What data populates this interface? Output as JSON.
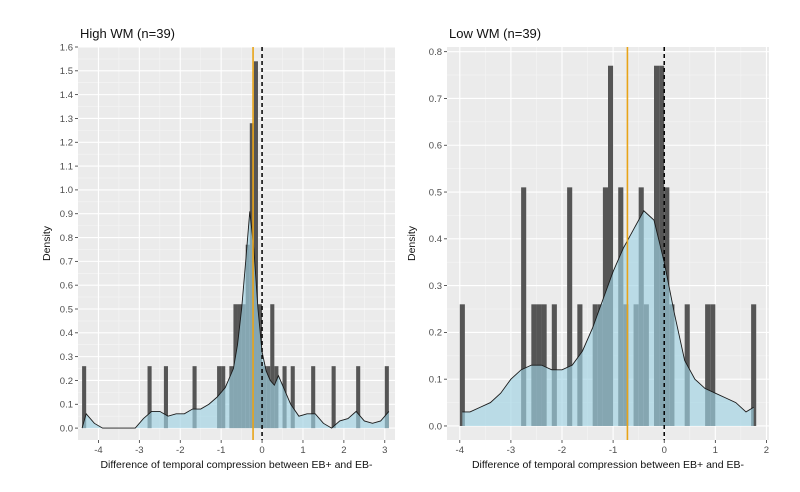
{
  "colors": {
    "panel_bg": "#ebebeb",
    "grid_major": "#ffffff",
    "grid_minor": "#f5f5f5",
    "bar": "#555555",
    "density_fill": "#9fd3e3",
    "density_line": "#1a1a1a",
    "mean_line": "#e8a317",
    "zero_line": "#000000"
  },
  "chart_data": [
    {
      "type": "histogram+density",
      "title": "High WM (n=39)",
      "xlabel": "Difference of temporal compression between EB+ and EB-",
      "ylabel": "Density",
      "xlim": [
        -4.5,
        3.25
      ],
      "ylim": [
        -0.05,
        1.6
      ],
      "xticks": [
        -4,
        -3,
        -2,
        -1,
        0,
        1,
        2,
        3
      ],
      "yticks": [
        0.0,
        0.1,
        0.2,
        0.3,
        0.4,
        0.5,
        0.6,
        0.7,
        0.8,
        0.9,
        1.0,
        1.1,
        1.2,
        1.3,
        1.4,
        1.5,
        1.6
      ],
      "tick_labels_y": [
        "0.0",
        "0.1",
        "0.2",
        "0.3",
        "0.4",
        "0.5",
        "0.6",
        "0.7",
        "0.8",
        "0.9",
        "1.0",
        "1.1",
        "1.2",
        "1.3",
        "1.4",
        "1.5",
        "1.6"
      ],
      "tick_labels_x": [
        "-4",
        "-3",
        "-2",
        "-1",
        "0",
        "1",
        "2",
        "3"
      ],
      "binwidth": 0.1,
      "bins": [
        {
          "x": -4.35,
          "y": 0.26
        },
        {
          "x": -2.75,
          "y": 0.26
        },
        {
          "x": -2.35,
          "y": 0.26
        },
        {
          "x": -1.65,
          "y": 0.26
        },
        {
          "x": -1.05,
          "y": 0.26
        },
        {
          "x": -0.95,
          "y": 0.26
        },
        {
          "x": -0.75,
          "y": 0.26
        },
        {
          "x": -0.65,
          "y": 0.52
        },
        {
          "x": -0.55,
          "y": 0.52
        },
        {
          "x": -0.45,
          "y": 0.52
        },
        {
          "x": -0.35,
          "y": 0.77
        },
        {
          "x": -0.25,
          "y": 1.28
        },
        {
          "x": -0.15,
          "y": 1.54
        },
        {
          "x": -0.05,
          "y": 0.52
        },
        {
          "x": 0.05,
          "y": 0.26
        },
        {
          "x": 0.15,
          "y": 0.26
        },
        {
          "x": 0.25,
          "y": 0.52
        },
        {
          "x": 0.35,
          "y": 0.26
        },
        {
          "x": 0.55,
          "y": 0.26
        },
        {
          "x": 0.75,
          "y": 0.26
        },
        {
          "x": 1.25,
          "y": 0.26
        },
        {
          "x": 1.75,
          "y": 0.26
        },
        {
          "x": 2.35,
          "y": 0.26
        },
        {
          "x": 3.05,
          "y": 0.26
        }
      ],
      "density": {
        "x": [
          -4.4,
          -4.3,
          -4.1,
          -3.9,
          -3.5,
          -3.1,
          -2.9,
          -2.7,
          -2.5,
          -2.3,
          -2.1,
          -1.9,
          -1.7,
          -1.5,
          -1.3,
          -1.1,
          -0.9,
          -0.7,
          -0.6,
          -0.5,
          -0.4,
          -0.3,
          -0.2,
          -0.1,
          0.0,
          0.1,
          0.2,
          0.3,
          0.4,
          0.5,
          0.7,
          0.9,
          1.1,
          1.3,
          1.5,
          1.7,
          1.9,
          2.1,
          2.3,
          2.5,
          2.7,
          2.9,
          3.1
        ],
        "y": [
          0.0,
          0.06,
          0.02,
          0.0,
          0.0,
          0.0,
          0.04,
          0.07,
          0.07,
          0.05,
          0.06,
          0.06,
          0.08,
          0.08,
          0.1,
          0.13,
          0.17,
          0.25,
          0.35,
          0.5,
          0.7,
          0.91,
          0.75,
          0.5,
          0.32,
          0.24,
          0.2,
          0.18,
          0.22,
          0.18,
          0.1,
          0.05,
          0.06,
          0.06,
          0.02,
          0.0,
          0.03,
          0.04,
          0.07,
          0.03,
          0.02,
          0.03,
          0.07
        ]
      },
      "mean_line_x": -0.22,
      "zero_line_x": 0
    },
    {
      "type": "histogram+density",
      "title": "Low WM (n=39)",
      "xlabel": "Difference of temporal compression between EB+ and EB-",
      "ylabel": "Density",
      "xlim": [
        -4.25,
        2.05
      ],
      "ylim": [
        -0.03,
        0.81
      ],
      "xticks": [
        -4,
        -3,
        -2,
        -1,
        0,
        1,
        2
      ],
      "yticks": [
        0.0,
        0.1,
        0.2,
        0.3,
        0.4,
        0.5,
        0.6,
        0.7,
        0.8
      ],
      "tick_labels_y": [
        "0.0",
        "0.1",
        "0.2",
        "0.3",
        "0.4",
        "0.5",
        "0.6",
        "0.7",
        "0.8"
      ],
      "tick_labels_x": [
        "-4",
        "-3",
        "-2",
        "-1",
        "0",
        "1",
        "2"
      ],
      "binwidth": 0.1,
      "bins": [
        {
          "x": -3.95,
          "y": 0.26
        },
        {
          "x": -2.75,
          "y": 0.51
        },
        {
          "x": -2.55,
          "y": 0.26
        },
        {
          "x": -2.45,
          "y": 0.26
        },
        {
          "x": -2.35,
          "y": 0.26
        },
        {
          "x": -2.15,
          "y": 0.26
        },
        {
          "x": -1.85,
          "y": 0.51
        },
        {
          "x": -1.65,
          "y": 0.26
        },
        {
          "x": -1.35,
          "y": 0.26
        },
        {
          "x": -1.25,
          "y": 0.26
        },
        {
          "x": -1.15,
          "y": 0.51
        },
        {
          "x": -1.05,
          "y": 0.77
        },
        {
          "x": -0.85,
          "y": 0.51
        },
        {
          "x": -0.75,
          "y": 0.26
        },
        {
          "x": -0.55,
          "y": 0.26
        },
        {
          "x": -0.45,
          "y": 0.51
        },
        {
          "x": -0.35,
          "y": 0.26
        },
        {
          "x": -0.15,
          "y": 0.77
        },
        {
          "x": -0.05,
          "y": 0.77
        },
        {
          "x": 0.05,
          "y": 0.51
        },
        {
          "x": 0.15,
          "y": 0.26
        },
        {
          "x": 0.45,
          "y": 0.26
        },
        {
          "x": 0.85,
          "y": 0.26
        },
        {
          "x": 0.95,
          "y": 0.26
        },
        {
          "x": 1.75,
          "y": 0.26
        }
      ],
      "density": {
        "x": [
          -3.95,
          -3.8,
          -3.6,
          -3.4,
          -3.2,
          -3.0,
          -2.8,
          -2.6,
          -2.4,
          -2.2,
          -2.0,
          -1.8,
          -1.6,
          -1.4,
          -1.2,
          -1.0,
          -0.8,
          -0.6,
          -0.4,
          -0.2,
          0.0,
          0.2,
          0.4,
          0.6,
          0.8,
          1.0,
          1.2,
          1.4,
          1.6,
          1.75
        ],
        "y": [
          0.03,
          0.03,
          0.04,
          0.05,
          0.07,
          0.1,
          0.12,
          0.13,
          0.13,
          0.12,
          0.12,
          0.13,
          0.16,
          0.21,
          0.27,
          0.33,
          0.38,
          0.42,
          0.46,
          0.44,
          0.35,
          0.24,
          0.14,
          0.1,
          0.08,
          0.07,
          0.06,
          0.05,
          0.03,
          0.04
        ]
      },
      "mean_line_x": -0.72,
      "zero_line_x": 0
    }
  ]
}
